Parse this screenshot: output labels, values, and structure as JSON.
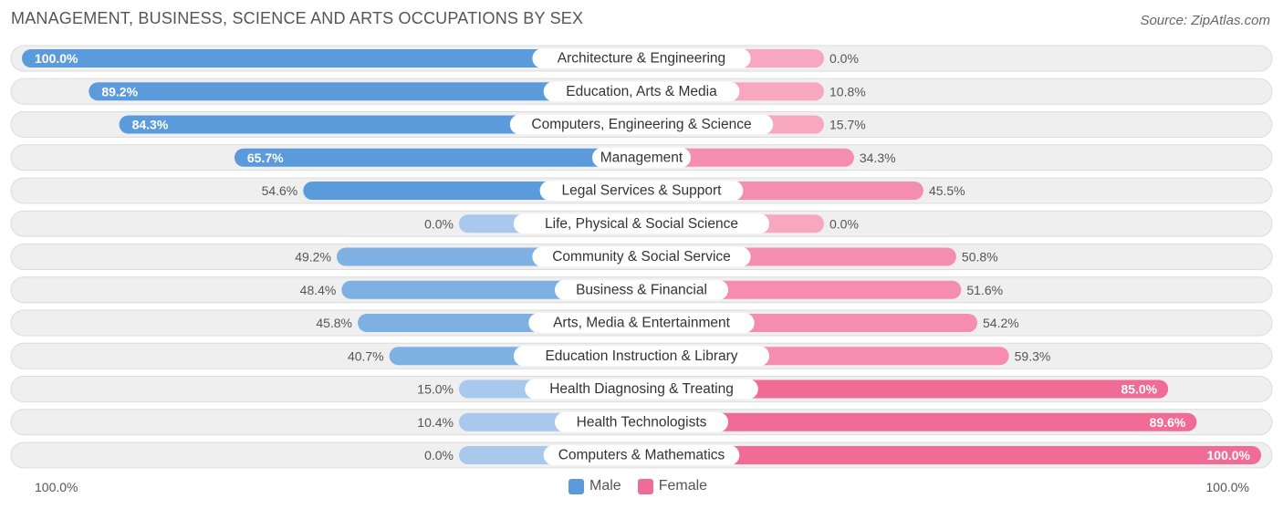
{
  "title": "MANAGEMENT, BUSINESS, SCIENCE AND ARTS OCCUPATIONS BY SEX",
  "source": "Source: ZipAtlas.com",
  "axis": {
    "left_label": "100.0%",
    "right_label": "100.0%"
  },
  "legend": {
    "male": "Male",
    "female": "Female"
  },
  "colors": {
    "male_strong": "#5b9bdc",
    "male_light": "#a8c8ec",
    "female_strong": "#f06b95",
    "female_light": "#f7a8c0",
    "row_bg": "#efefef"
  },
  "chart_data": {
    "type": "bar",
    "orientation": "horizontal-diverging",
    "title": "MANAGEMENT, BUSINESS, SCIENCE AND ARTS OCCUPATIONS BY SEX",
    "xlim": [
      -100,
      100
    ],
    "series": [
      {
        "name": "Male",
        "values": [
          100.0,
          89.2,
          84.3,
          65.7,
          54.6,
          0.0,
          49.2,
          48.4,
          45.8,
          40.7,
          15.0,
          10.4,
          0.0
        ]
      },
      {
        "name": "Female",
        "values": [
          0.0,
          10.8,
          15.7,
          34.3,
          45.5,
          0.0,
          50.8,
          51.6,
          54.2,
          59.3,
          85.0,
          89.6,
          100.0
        ]
      }
    ],
    "categories": [
      "Architecture & Engineering",
      "Education, Arts & Media",
      "Computers, Engineering & Science",
      "Management",
      "Legal Services & Support",
      "Life, Physical & Social Science",
      "Community & Social Service",
      "Business & Financial",
      "Arts, Media & Entertainment",
      "Education Instruction & Library",
      "Health Diagnosing & Treating",
      "Health Technologists",
      "Computers & Mathematics"
    ],
    "male_labels": [
      "100.0%",
      "89.2%",
      "84.3%",
      "65.7%",
      "54.6%",
      "0.0%",
      "49.2%",
      "48.4%",
      "45.8%",
      "40.7%",
      "15.0%",
      "10.4%",
      "0.0%"
    ],
    "female_labels": [
      "0.0%",
      "10.8%",
      "15.7%",
      "34.3%",
      "45.5%",
      "0.0%",
      "50.8%",
      "51.6%",
      "54.2%",
      "59.3%",
      "85.0%",
      "89.6%",
      "100.0%"
    ]
  }
}
